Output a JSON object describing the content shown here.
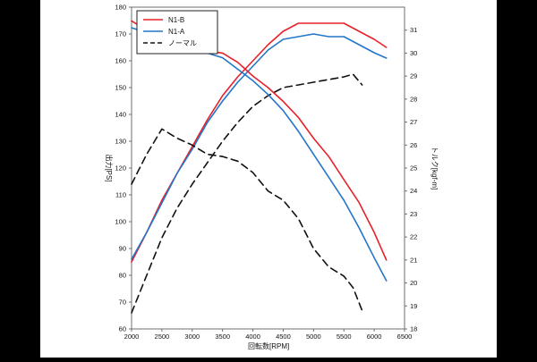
{
  "chart_data": {
    "type": "line",
    "title": "",
    "xlabel": "回転数[RPM]",
    "ylabel": "出力[PS]",
    "y2label": "トルク[kgf-m]",
    "xlim": [
      2000,
      6500
    ],
    "ylim": [
      60,
      180
    ],
    "y2lim": [
      18,
      32
    ],
    "xticks": [
      2000,
      2500,
      3000,
      3500,
      4000,
      4500,
      5000,
      5500,
      6000,
      6500
    ],
    "yticks": [
      60,
      70,
      80,
      90,
      100,
      110,
      120,
      130,
      140,
      150,
      160,
      170,
      180
    ],
    "y2ticks": [
      18,
      19,
      20,
      21,
      22,
      23,
      24,
      25,
      26,
      27,
      28,
      29,
      30,
      31
    ],
    "grid": false,
    "legend_position": "top-left",
    "legend": [
      "N1-B",
      "N1-A",
      "ノーマル"
    ],
    "series": [
      {
        "name": "N1-B",
        "metric": "power",
        "axis": "left",
        "color": "#e8202a",
        "dash": "solid",
        "x": [
          2000,
          2250,
          2500,
          2750,
          3000,
          3250,
          3500,
          3750,
          4000,
          4250,
          4500,
          4750,
          5000,
          5250,
          5500,
          5750,
          6000,
          6200
        ],
        "y": [
          85,
          96,
          108,
          118,
          128,
          138,
          147,
          154,
          160,
          166,
          171,
          174,
          174,
          174,
          174,
          171,
          168,
          165
        ]
      },
      {
        "name": "N1-A",
        "metric": "power",
        "axis": "left",
        "color": "#2375c9",
        "dash": "solid",
        "x": [
          2000,
          2250,
          2500,
          2750,
          3000,
          3250,
          3500,
          3750,
          4000,
          4250,
          4500,
          4750,
          5000,
          5250,
          5500,
          5750,
          6000,
          6200
        ],
        "y": [
          86,
          96,
          107,
          118,
          127,
          137,
          145,
          152,
          158,
          164,
          168,
          169,
          170,
          169,
          169,
          166,
          163,
          161
        ]
      },
      {
        "name": "ノーマル",
        "metric": "power",
        "axis": "left",
        "color": "#111111",
        "dash": "8,5",
        "x": [
          2000,
          2250,
          2500,
          2750,
          3000,
          3250,
          3500,
          3750,
          4000,
          4250,
          4500,
          4750,
          5000,
          5250,
          5500,
          5650,
          5800
        ],
        "y": [
          66,
          80,
          94,
          105,
          114,
          122,
          130,
          137,
          143,
          147,
          150,
          151,
          152,
          153,
          154,
          155,
          151
        ]
      },
      {
        "name": "N1-B",
        "metric": "torque",
        "axis": "right",
        "color": "#e8202a",
        "dash": "solid",
        "x": [
          2000,
          2250,
          2500,
          2750,
          3000,
          3250,
          3500,
          3750,
          4000,
          4250,
          4500,
          4750,
          5000,
          5250,
          5500,
          5750,
          6000,
          6200
        ],
        "y": [
          31.4,
          31.0,
          30.9,
          30.5,
          30.3,
          30.1,
          30.0,
          29.6,
          29.0,
          28.5,
          27.9,
          27.2,
          26.3,
          25.5,
          24.5,
          23.5,
          22.2,
          21.0
        ]
      },
      {
        "name": "N1-A",
        "metric": "torque",
        "axis": "right",
        "color": "#2375c9",
        "dash": "solid",
        "x": [
          2000,
          2250,
          2500,
          2750,
          3000,
          3250,
          3500,
          3750,
          4000,
          4250,
          4500,
          4750,
          5000,
          5250,
          5500,
          5750,
          6000,
          6200
        ],
        "y": [
          31.1,
          30.9,
          30.6,
          30.3,
          30.1,
          30.0,
          29.8,
          29.3,
          28.8,
          28.2,
          27.5,
          26.6,
          25.6,
          24.6,
          23.6,
          22.4,
          21.1,
          20.1
        ]
      },
      {
        "name": "ノーマル",
        "metric": "torque",
        "axis": "right",
        "color": "#111111",
        "dash": "8,5",
        "x": [
          2000,
          2250,
          2500,
          2750,
          3000,
          3250,
          3500,
          3750,
          4000,
          4250,
          4500,
          4750,
          5000,
          5250,
          5500,
          5650,
          5800
        ],
        "y": [
          24.3,
          25.6,
          26.7,
          26.3,
          26.0,
          25.6,
          25.5,
          25.3,
          24.8,
          24.0,
          23.6,
          22.8,
          21.5,
          20.7,
          20.3,
          19.8,
          18.8
        ]
      }
    ]
  }
}
